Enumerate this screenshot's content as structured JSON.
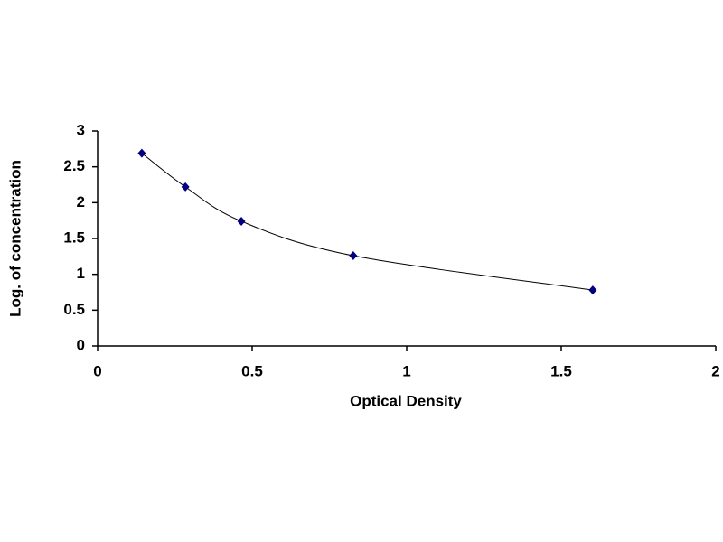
{
  "chart_data": {
    "type": "scatter",
    "xlabel": "Optical Density",
    "ylabel": "Log. of concentration",
    "x": [
      0.143,
      0.284,
      0.465,
      0.827,
      1.602
    ],
    "values": [
      2.69,
      2.22,
      1.74,
      1.26,
      0.78
    ],
    "color": "#000080",
    "line_color": "#000000",
    "smooth_line": true,
    "xlim": [
      0,
      2
    ],
    "xticks": [
      0,
      0.5,
      1,
      1.5,
      2
    ],
    "ylim": [
      0,
      3
    ],
    "yticks": [
      0,
      0.5,
      1,
      1.5,
      2,
      2.5,
      3
    ],
    "grid": false
  }
}
